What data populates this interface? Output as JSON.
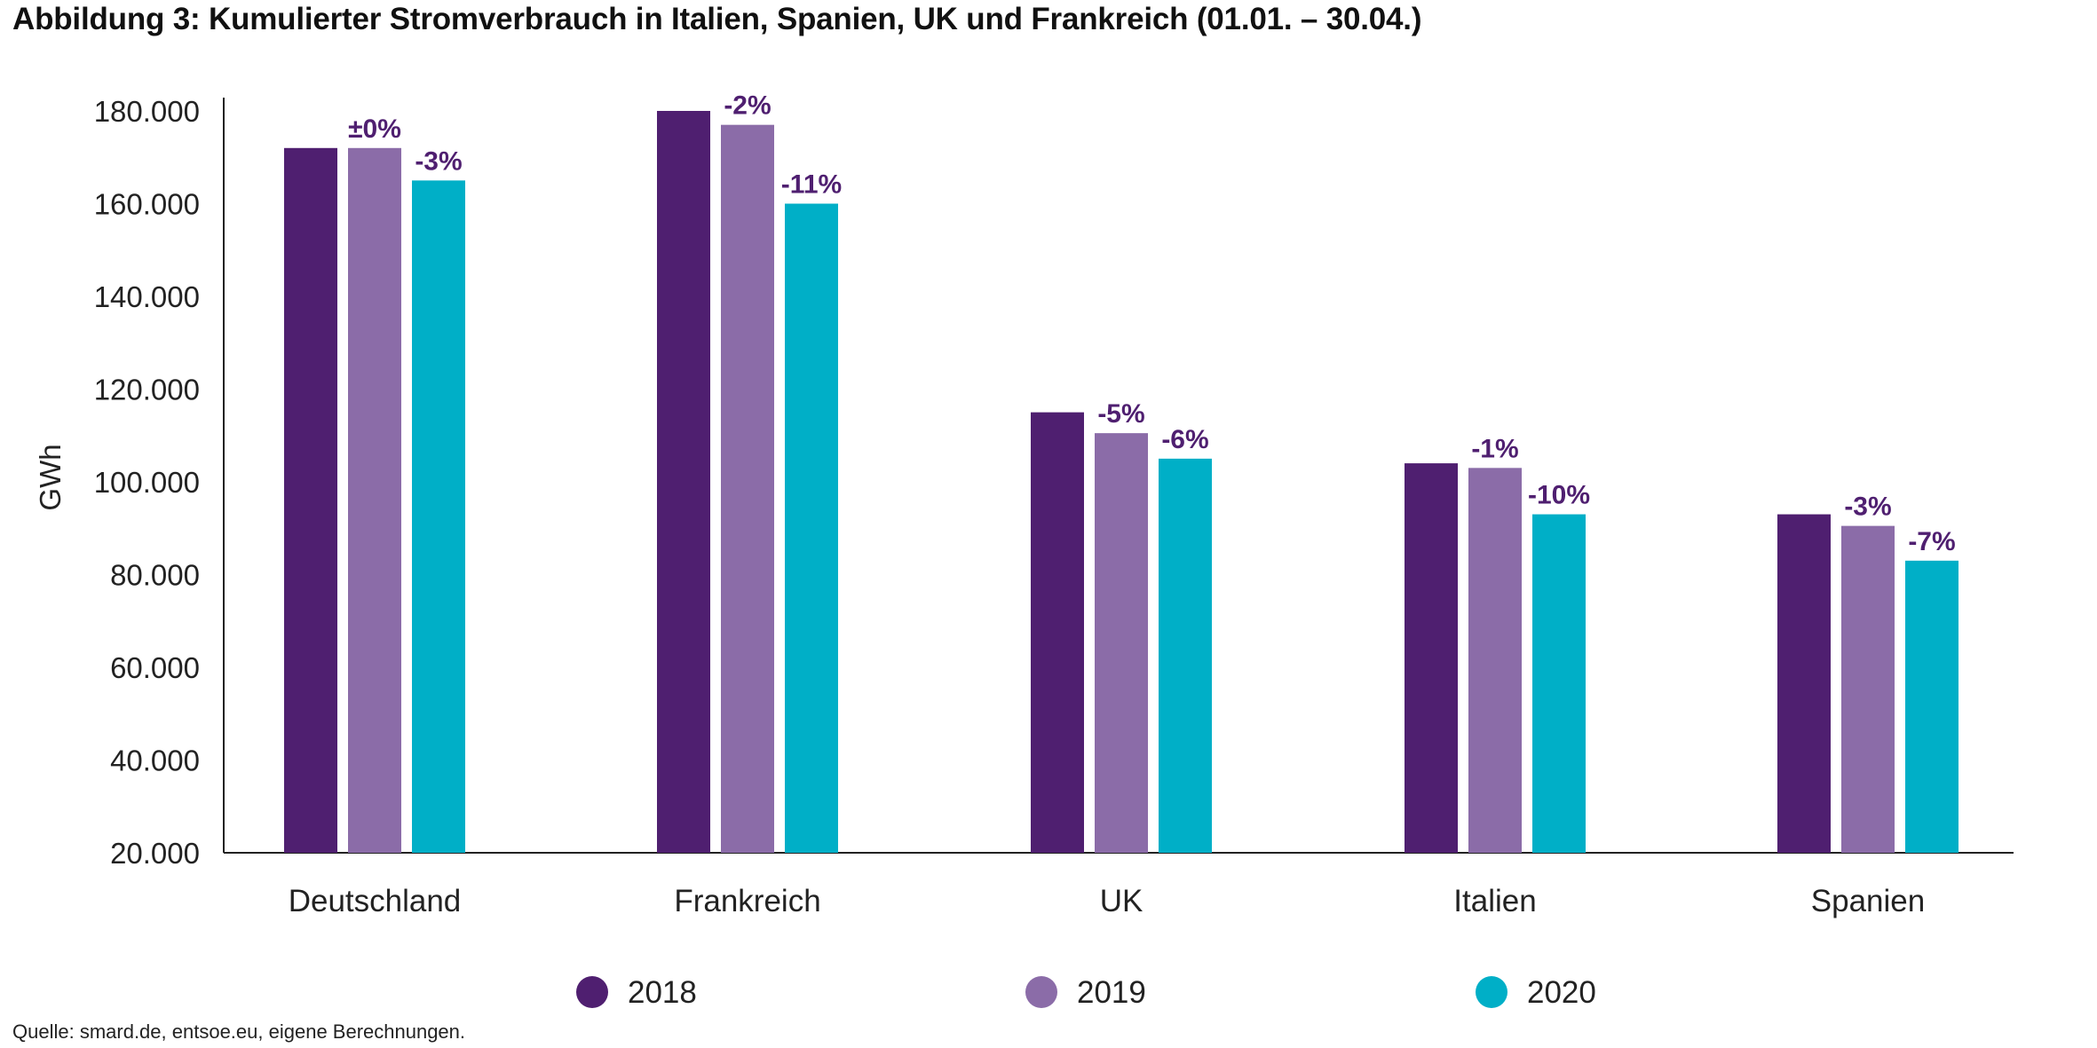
{
  "colors": {
    "c2018": "#4F1F70",
    "c2019": "#8B6CA8",
    "c2020": "#00AFC7",
    "label": "#4F1F70",
    "axis": "#222222"
  },
  "chart_data": {
    "type": "bar",
    "title": "Abbildung 3: Kumulierter Stromverbrauch in Italien, Spanien, UK und Frankreich (01.01. – 30.04.)",
    "xlabel": "",
    "ylabel": "GWh",
    "ylim": [
      20000,
      180000
    ],
    "yticks": [
      20000,
      40000,
      60000,
      80000,
      100000,
      120000,
      140000,
      160000,
      180000
    ],
    "ytick_labels": [
      "20.000",
      "40.000",
      "60.000",
      "80.000",
      "100.000",
      "120.000",
      "140.000",
      "160.000",
      "180.000"
    ],
    "categories": [
      "Deutschland",
      "Frankreich",
      "UK",
      "Italien",
      "Spanien"
    ],
    "series": [
      {
        "name": "2018",
        "color": "#4F1F70",
        "values": [
          172000,
          180000,
          115000,
          104000,
          93000
        ],
        "labels": [
          "",
          "",
          "",
          "",
          ""
        ]
      },
      {
        "name": "2019",
        "color": "#8B6CA8",
        "values": [
          172000,
          177000,
          110500,
          103000,
          90500
        ],
        "labels": [
          "±0%",
          "-2%",
          "-5%",
          "-1%",
          "-3%"
        ]
      },
      {
        "name": "2020",
        "color": "#00AFC7",
        "values": [
          165000,
          160000,
          105000,
          93000,
          83000
        ],
        "labels": [
          "-3%",
          "-11%",
          "-6%",
          "-10%",
          "-7%"
        ]
      }
    ],
    "legend": [
      "2018",
      "2019",
      "2020"
    ],
    "legend_position": "bottom",
    "grid": false,
    "source": "Quelle: smard.de, entsoe.eu, eigene Berechnungen."
  }
}
